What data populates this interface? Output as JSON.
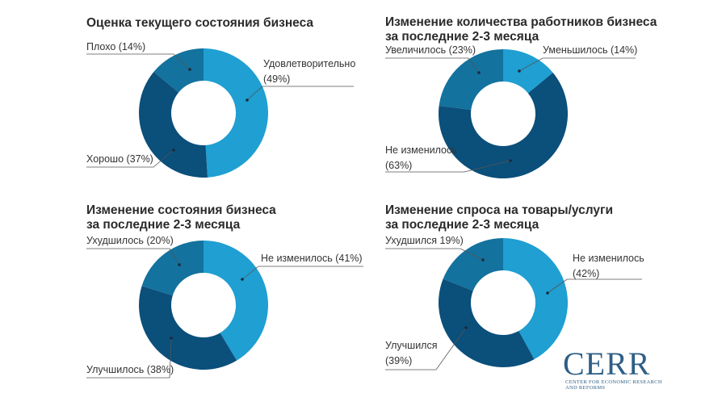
{
  "colors": {
    "light": "#1f9fd2",
    "medium": "#13729e",
    "dark": "#0b4f7b",
    "leader": "#555555"
  },
  "chart_data": [
    {
      "type": "pie",
      "title": "Оценка текущего состояния бизнеса",
      "slices": [
        {
          "label": "Удовлетворительно\n(49%)",
          "value": 49,
          "color": "light"
        },
        {
          "label": "Хорошо (37%)",
          "value": 37,
          "color": "dark"
        },
        {
          "label": "Плохо (14%)",
          "value": 14,
          "color": "medium"
        }
      ]
    },
    {
      "type": "pie",
      "title": "Изменение количества работников бизнеса\nза последние 2-3 месяца",
      "slices": [
        {
          "label": "Уменьшилось (14%)",
          "value": 14,
          "color": "light"
        },
        {
          "label": "Не изменилось\n(63%)",
          "value": 63,
          "color": "dark"
        },
        {
          "label": "Увеличилось (23%)",
          "value": 23,
          "color": "medium"
        }
      ]
    },
    {
      "type": "pie",
      "title": "Изменение состояния бизнеса\nза последние 2-3 месяца",
      "slices": [
        {
          "label": "Не изменилось (41%)",
          "value": 41,
          "color": "light"
        },
        {
          "label": "Улучшилось (38%)",
          "value": 38,
          "color": "dark"
        },
        {
          "label": "Ухудшилось (20%)",
          "value": 20,
          "color": "medium"
        }
      ]
    },
    {
      "type": "pie",
      "title": "Изменение спроса на товары/услуги\nза последние 2-3 месяца",
      "slices": [
        {
          "label": "Не изменилось\n(42%)",
          "value": 42,
          "color": "light"
        },
        {
          "label": "Улучшился\n(39%)",
          "value": 39,
          "color": "dark"
        },
        {
          "label": "Ухудшился 19%)",
          "value": 19,
          "color": "medium"
        }
      ]
    }
  ],
  "logo": {
    "name": "CERR",
    "subtitle": "Center for Economic Research and Reforms"
  }
}
